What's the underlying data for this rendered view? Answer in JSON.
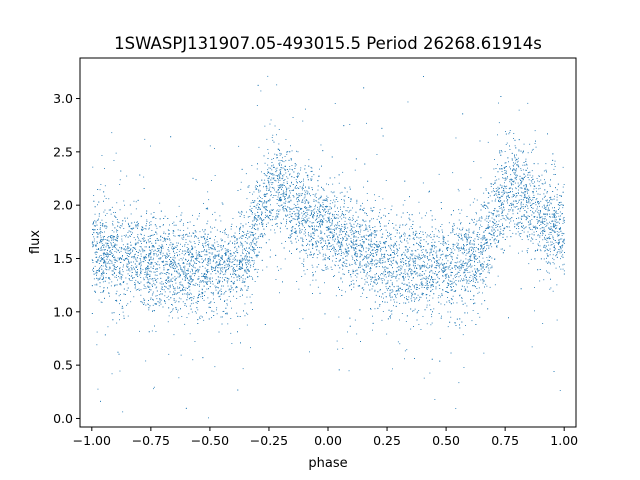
{
  "chart_data": {
    "type": "scatter",
    "title": "1SWASPJ131907.05-493015.5 Period 26268.61914s",
    "xlabel": "phase",
    "ylabel": "flux",
    "xlim": [
      -1.05,
      1.05
    ],
    "ylim": [
      -0.08,
      3.38
    ],
    "xticks": [
      -1.0,
      -0.75,
      -0.5,
      -0.25,
      0.0,
      0.25,
      0.5,
      0.75,
      1.0
    ],
    "xtick_labels": [
      "−1.00",
      "−0.75",
      "−0.50",
      "−0.25",
      "0.00",
      "0.25",
      "0.50",
      "0.75",
      "1.00"
    ],
    "yticks": [
      0.0,
      0.5,
      1.0,
      1.5,
      2.0,
      2.5,
      3.0
    ],
    "ytick_labels": [
      "0.0",
      "0.5",
      "1.0",
      "1.5",
      "2.0",
      "2.5",
      "3.0"
    ],
    "grid": false,
    "marker_color": "#1f77b4",
    "series": [
      {
        "phase": [
          -1.0,
          -0.9,
          -0.8,
          -0.7,
          -0.6,
          -0.5,
          -0.42,
          -0.35,
          -0.3,
          -0.25,
          -0.22,
          -0.18,
          -0.12,
          -0.05,
          0.0,
          0.1,
          0.2,
          0.3,
          0.4,
          0.5,
          0.58,
          0.65,
          0.7,
          0.75,
          0.78,
          0.82,
          0.88,
          0.95,
          1.0
        ],
        "flux_center": [
          1.58,
          1.55,
          1.5,
          1.45,
          1.42,
          1.4,
          1.42,
          1.55,
          1.85,
          2.1,
          2.2,
          2.1,
          1.95,
          1.82,
          1.75,
          1.62,
          1.52,
          1.45,
          1.41,
          1.4,
          1.42,
          1.55,
          1.85,
          2.1,
          2.2,
          2.1,
          1.95,
          1.82,
          1.75
        ]
      }
    ]
  }
}
